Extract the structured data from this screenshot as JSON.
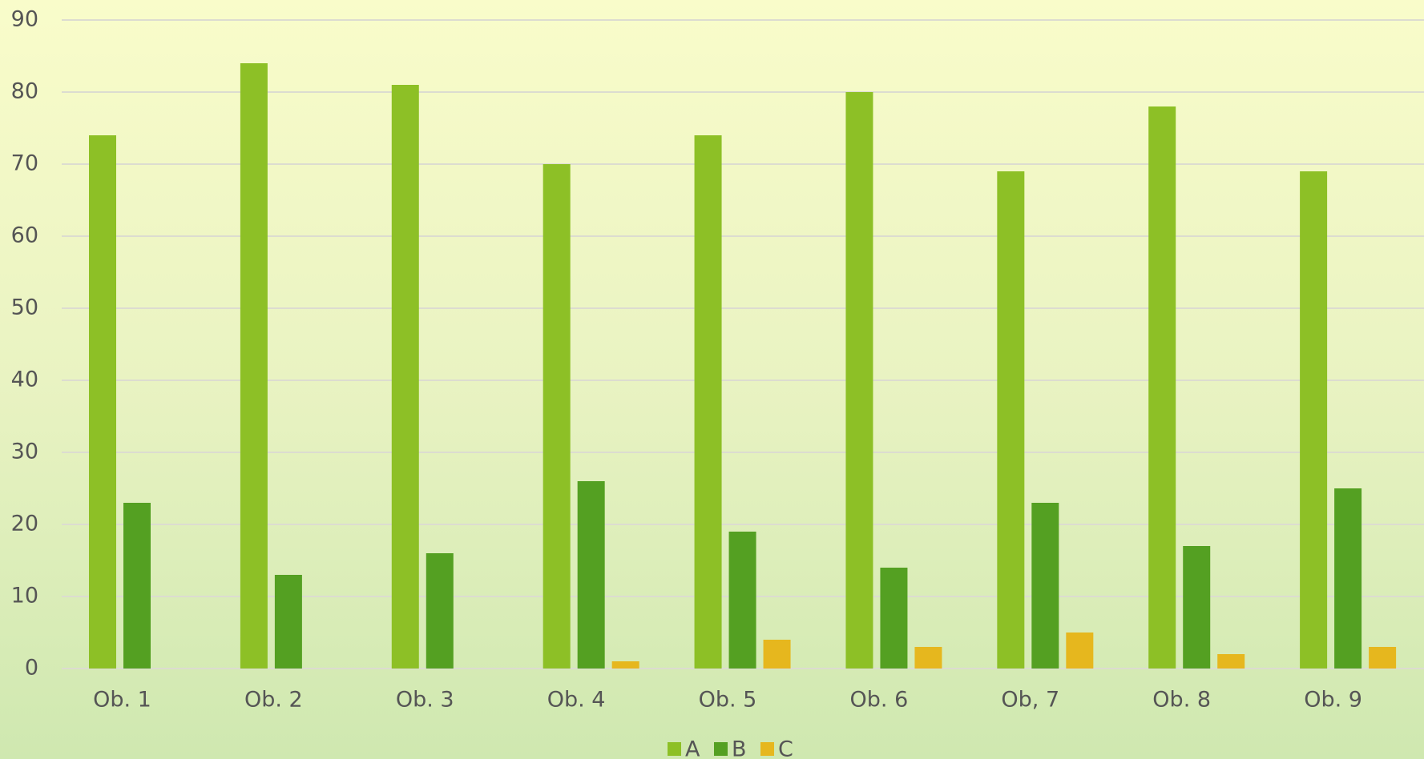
{
  "chart_data": {
    "type": "bar",
    "categories": [
      "Ob. 1",
      "Ob. 2",
      "Ob. 3",
      "Ob. 4",
      "Ob. 5",
      "Ob. 6",
      "Ob, 7",
      "Ob. 8",
      "Ob. 9"
    ],
    "series": [
      {
        "name": "A",
        "color": "#8dc026",
        "values": [
          74,
          84,
          81,
          70,
          74,
          80,
          69,
          78,
          69
        ]
      },
      {
        "name": "B",
        "color": "#54a022",
        "values": [
          23,
          13,
          16,
          26,
          19,
          14,
          23,
          17,
          25
        ]
      },
      {
        "name": "C",
        "color": "#e6b71e",
        "values": [
          0,
          0,
          0,
          1,
          4,
          3,
          5,
          2,
          3
        ]
      }
    ],
    "ylim": [
      0,
      90
    ],
    "yticks": [
      0,
      10,
      20,
      30,
      40,
      50,
      60,
      70,
      80,
      90
    ],
    "grid": true,
    "legend": "bottom"
  }
}
